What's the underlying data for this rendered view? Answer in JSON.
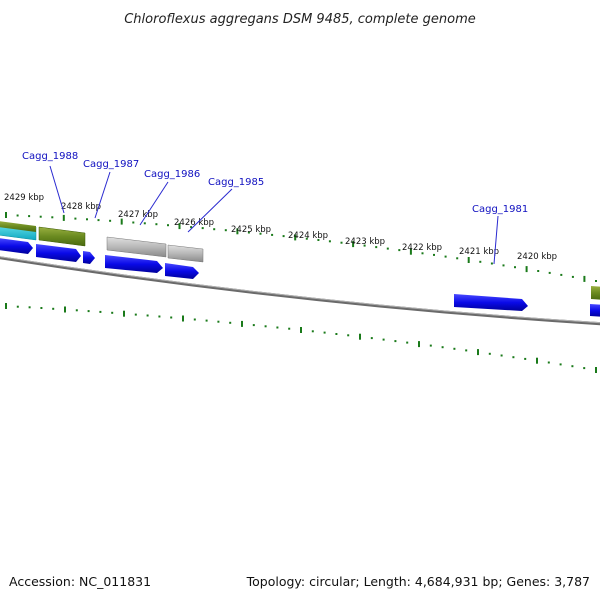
{
  "title": "Chloroflexus aggregans DSM 9485, complete genome",
  "accession": "Accession: NC_011831",
  "summary": "Topology: circular; Length: 4,684,931 bp; Genes: 3,787",
  "kbp_labels": [
    "2429 kbp",
    "2428 kbp",
    "2427 kbp",
    "2426 kbp",
    "2425 kbp",
    "2424 kbp",
    "2423 kbp",
    "2422 kbp",
    "2421 kbp",
    "2420 kbp"
  ],
  "gene_labels": [
    "Cagg_1988",
    "Cagg_1987",
    "Cagg_1986",
    "Cagg_1985",
    "Cagg_1981"
  ],
  "colors": {
    "tick": "#1a7a1a",
    "label_line": "#2a2ad0",
    "gene_blue": "#0a0ae8",
    "gene_olive": "#6a8a20",
    "gene_cyan": "#1ab8c8",
    "gene_gray": "#b8b8b8",
    "backbone": "#808080"
  }
}
